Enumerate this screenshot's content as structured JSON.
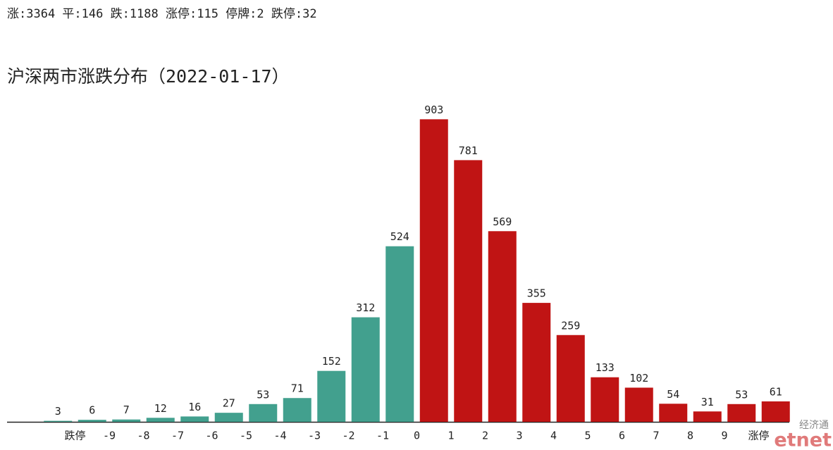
{
  "summary": "涨:3364 平:146 跌:1188 涨停:115 停牌:2 跌停:32",
  "logo": {
    "top": "经济通",
    "bottom": "etnet"
  },
  "chart_data": {
    "type": "bar",
    "title": "沪深两市涨跌分布（2022-01-17）",
    "x_edge_labels": [
      "跌停",
      "-9",
      "-8",
      "-7",
      "-6",
      "-5",
      "-4",
      "-3",
      "-2",
      "-1",
      "0",
      "1",
      "2",
      "3",
      "4",
      "5",
      "6",
      "7",
      "8",
      "9",
      "涨停"
    ],
    "values": [
      3,
      6,
      7,
      12,
      16,
      27,
      53,
      71,
      152,
      312,
      524,
      903,
      781,
      569,
      355,
      259,
      133,
      102,
      54,
      31,
      53,
      61
    ],
    "colors": [
      "#42a08e",
      "#42a08e",
      "#42a08e",
      "#42a08e",
      "#42a08e",
      "#42a08e",
      "#42a08e",
      "#42a08e",
      "#42a08e",
      "#42a08e",
      "#42a08e",
      "#c01414",
      "#c01414",
      "#c01414",
      "#c01414",
      "#c01414",
      "#c01414",
      "#c01414",
      "#c01414",
      "#c01414",
      "#c01414",
      "#c01414"
    ],
    "ylim": [
      0,
      950
    ]
  }
}
